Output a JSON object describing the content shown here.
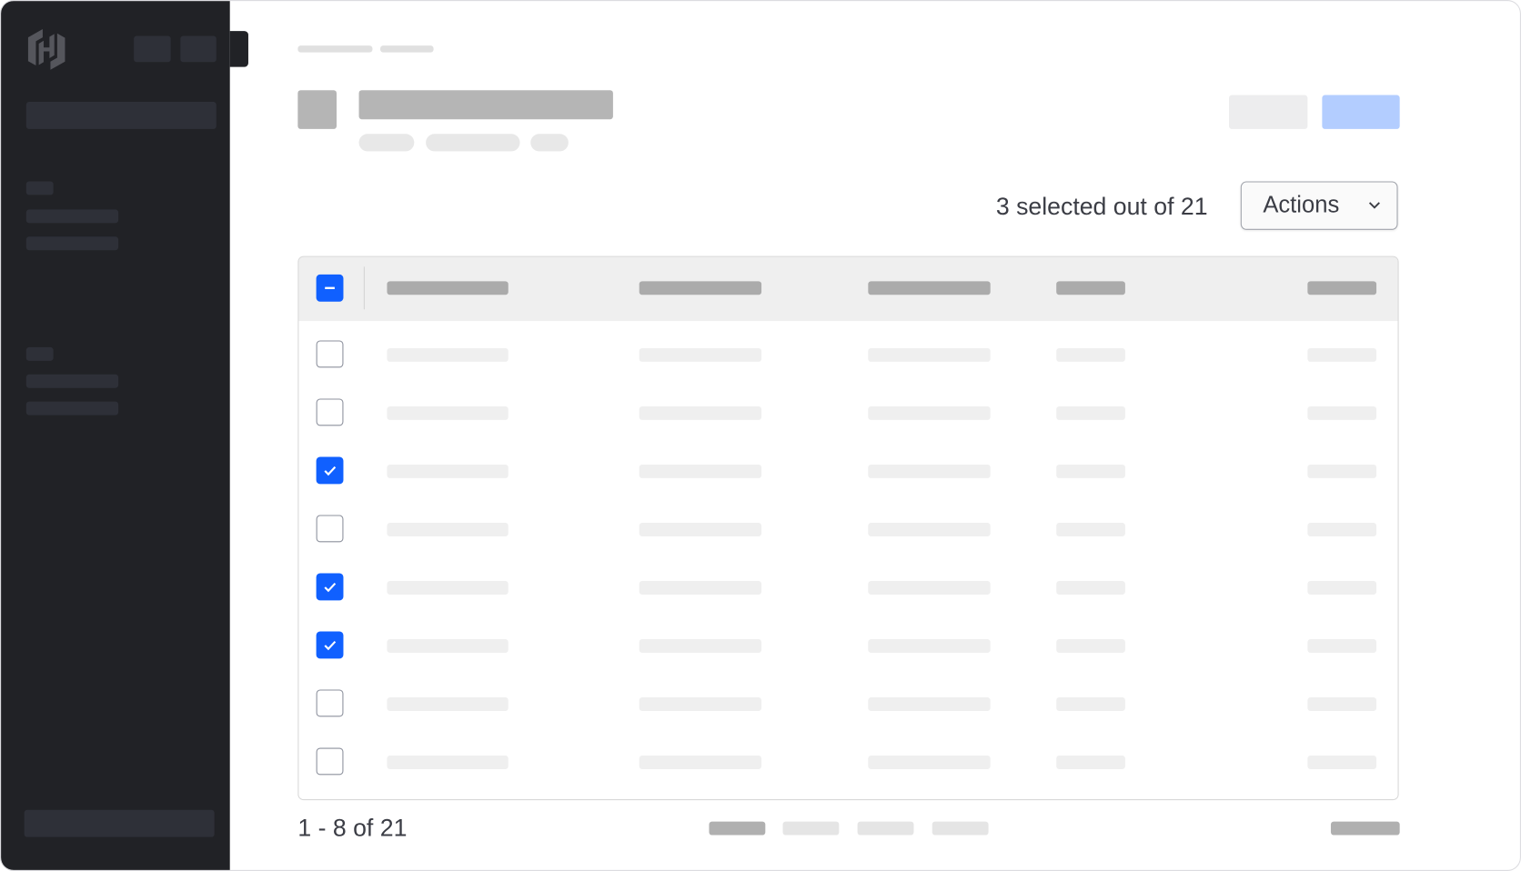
{
  "selection": {
    "summary": "3 selected out of 21"
  },
  "actions": {
    "label": "Actions",
    "icon": "chevron-down-icon"
  },
  "table": {
    "header_checkbox": "indeterminate",
    "rows": [
      {
        "checked": false
      },
      {
        "checked": false
      },
      {
        "checked": true
      },
      {
        "checked": false
      },
      {
        "checked": true
      },
      {
        "checked": true
      },
      {
        "checked": false
      },
      {
        "checked": false
      }
    ]
  },
  "pagination": {
    "summary": "1 - 8 of 21"
  },
  "colors": {
    "sidebar": "#212226",
    "accent": "#1060ff",
    "primary_button": "#b3cdff"
  }
}
